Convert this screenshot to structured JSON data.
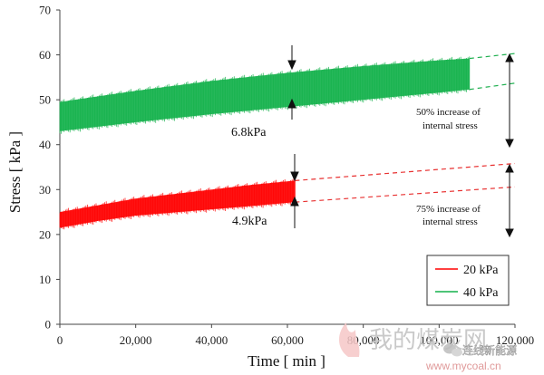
{
  "chart_data": {
    "type": "line",
    "xlabel": "Time [ min ]",
    "ylabel": "Stress [ kPa ]",
    "xlim": [
      0,
      120000
    ],
    "ylim": [
      0,
      70
    ],
    "x_ticks": [
      "0",
      "20,000",
      "40,000",
      "60,000",
      "80,000",
      "100,000",
      "120,000"
    ],
    "y_ticks": [
      "0",
      "10",
      "20",
      "30",
      "40",
      "50",
      "60",
      "70"
    ],
    "grid": false,
    "legend_position": "bottom-right",
    "colors": {
      "20 kPa": "#ff0000",
      "40 kPa": "#14b14b",
      "axis": "#333333",
      "dashed_red": "#e83030",
      "dashed_green": "#1fb050"
    },
    "series": [
      {
        "name": "20 kPa",
        "x": [
          0,
          10000,
          20000,
          30000,
          40000,
          50000,
          62000
        ],
        "y_upper": [
          25.0,
          26.5,
          28.0,
          29.0,
          30.0,
          31.0,
          32.0
        ],
        "y_lower": [
          21.5,
          23.0,
          24.2,
          24.9,
          25.6,
          26.3,
          27.2
        ],
        "extrapolation_upper": [
          [
            62000,
            32.0
          ],
          [
            120000,
            35.8
          ]
        ],
        "extrapolation_lower": [
          [
            62000,
            27.2
          ],
          [
            120000,
            30.6
          ]
        ]
      },
      {
        "name": "40 kPa",
        "x": [
          0,
          20000,
          40000,
          60000,
          80000,
          100000,
          108000
        ],
        "y_upper": [
          49.5,
          52.0,
          54.2,
          56.0,
          57.5,
          58.8,
          59.2
        ],
        "y_lower": [
          43.0,
          45.0,
          46.8,
          48.4,
          50.0,
          51.6,
          52.3
        ],
        "extrapolation_upper": [
          [
            108000,
            59.2
          ],
          [
            120000,
            60.3
          ]
        ],
        "extrapolation_lower": [
          [
            108000,
            52.3
          ],
          [
            120000,
            53.7
          ]
        ]
      }
    ],
    "annotations": {
      "green_amplitude": "6.8kPa",
      "red_amplitude": "4.9kPa",
      "green_increase_line1": "50% increase of",
      "green_increase_line2": "internal stress",
      "red_increase_line1": "75% increase of",
      "red_increase_line2": "internal stress"
    },
    "legend": [
      "20 kPa",
      "40 kPa"
    ]
  },
  "watermark": {
    "cn_text": "我的煤炭网",
    "url": "www.mycoal.cn",
    "small_text": "连线新能源"
  }
}
